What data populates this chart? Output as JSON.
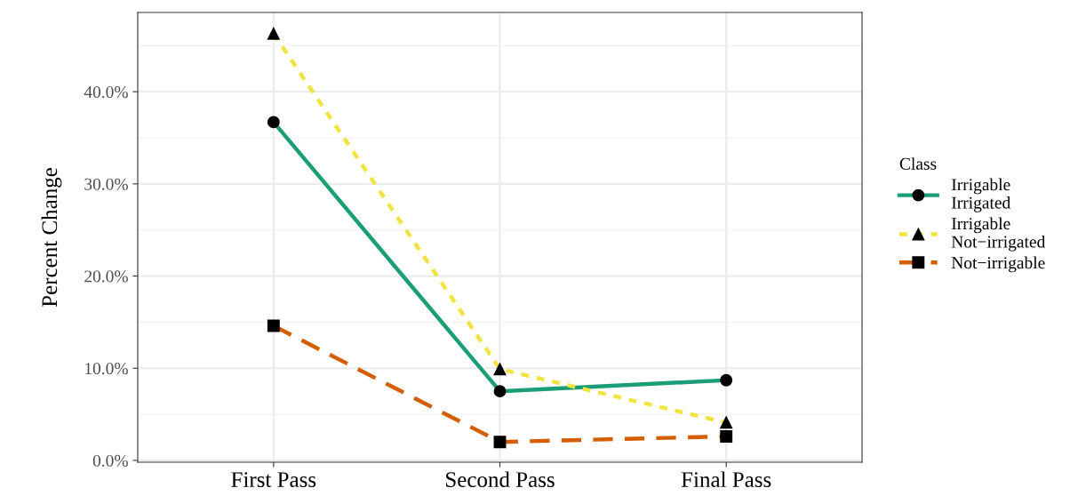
{
  "chart_data": {
    "type": "line",
    "ylabel": "Percent Change",
    "legend_title": "Class",
    "categories": [
      "First Pass",
      "Second Pass",
      "Final Pass"
    ],
    "series": [
      {
        "name": "Irrigable\nIrrigated",
        "color": "#1b9e77",
        "marker": "circle",
        "line_style": "solid",
        "values": [
          36.7,
          7.5,
          8.7
        ]
      },
      {
        "name": "Irrigable\nNot−irrigated",
        "color": "#f0e442",
        "marker": "triangle",
        "line_style": "dotted",
        "values": [
          46.3,
          9.9,
          4.1
        ]
      },
      {
        "name": "Not−irrigable",
        "color": "#d55e00",
        "marker": "square",
        "line_style": "dashed",
        "values": [
          14.6,
          2.0,
          2.6
        ]
      }
    ],
    "ylim": [
      -0.2,
      48.6
    ],
    "yticks": [
      {
        "value": 0,
        "label": "0.0%"
      },
      {
        "value": 5,
        "label": null
      },
      {
        "value": 10,
        "label": "10.0%"
      },
      {
        "value": 15,
        "label": null
      },
      {
        "value": 20,
        "label": "20.0%"
      },
      {
        "value": 25,
        "label": null
      },
      {
        "value": 30,
        "label": "30.0%"
      },
      {
        "value": 35,
        "label": null
      },
      {
        "value": 40,
        "label": "40.0%"
      },
      {
        "value": 45,
        "label": null
      }
    ],
    "grid": true,
    "legend": "right"
  }
}
